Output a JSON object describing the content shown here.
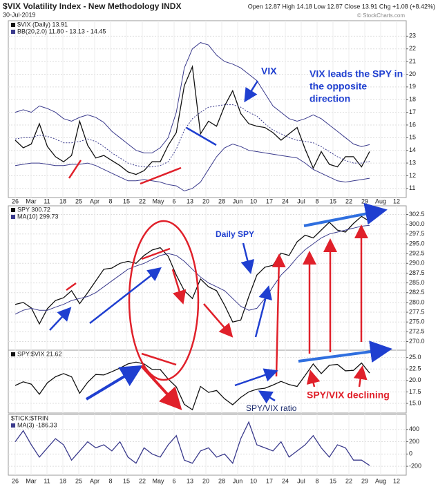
{
  "header": {
    "title": "$VIX Volatility Index - New Methodology INDX",
    "date": "30-Jul-2019",
    "quote": "Open 12.87 High 14.18 Low 12.87 Close 13.91 Chg +1.08 (+8.42%)",
    "credit": "© StockCharts.com"
  },
  "x_axis_labels": [
    "26",
    "Mar",
    "11",
    "18",
    "25",
    "Apr",
    "8",
    "15",
    "22",
    "May",
    "6",
    "13",
    "20",
    "28",
    "Jun",
    "10",
    "17",
    "24",
    "Jul",
    "8",
    "15",
    "22",
    "29",
    "Aug",
    "12"
  ],
  "annotations": {
    "vix": "VIX",
    "lead": [
      "VIX leads the SPY in",
      "the opposite",
      "direction"
    ],
    "daily_spy": "Daily SPY",
    "ratio": "SPY/VIX ratio",
    "declining": "SPY/VIX declining"
  },
  "chart_data": [
    {
      "type": "line",
      "ylim": [
        10.5,
        24
      ],
      "yticks": [
        11,
        12,
        13,
        14,
        15,
        16,
        17,
        18,
        19,
        20,
        21,
        22,
        23
      ],
      "grid": true,
      "series": [
        {
          "name": "$VIX (Daily) 13.91",
          "color": "#111111",
          "values": [
            14.8,
            14.2,
            14.5,
            16.1,
            14.3,
            13.5,
            13.1,
            13.6,
            16.3,
            14.4,
            13.4,
            13.6,
            13.2,
            12.8,
            12.3,
            12.1,
            12.4,
            13.1,
            13.1,
            14.4,
            15.4,
            19.1,
            20.6,
            15.3,
            16.3,
            15.9,
            17.5,
            18.7,
            16.9,
            16.1,
            15.9,
            15.8,
            15.4,
            14.8,
            15.3,
            15.8,
            14.1,
            12.6,
            13.9,
            12.9,
            12.7,
            13.5,
            13.5,
            12.7,
            13.91
          ]
        },
        {
          "name": "BB(20,2.0) 11.80 - 13.13 - 14.45",
          "color": "#3a3a8c",
          "upper": [
            17,
            17.2,
            17,
            17.5,
            17.3,
            17,
            16.5,
            16.3,
            16.6,
            16.8,
            16.6,
            16.2,
            15.5,
            15,
            14.5,
            14,
            13.8,
            13.8,
            14.2,
            15,
            17,
            20.5,
            22,
            22.5,
            22.3,
            21.5,
            21,
            20.8,
            20.5,
            20,
            19.5,
            18.5,
            17.5,
            17,
            16.5,
            16.3,
            16.5,
            16.8,
            16.5,
            16,
            15.5,
            15,
            14.5,
            14.3,
            14.45
          ],
          "middle": [
            14.9,
            15,
            15,
            15.2,
            15.1,
            14.9,
            14.6,
            14.6,
            14.7,
            14.9,
            14.7,
            14.3,
            13.8,
            13.4,
            13,
            12.8,
            12.7,
            12.7,
            12.8,
            13.1,
            14.1,
            15.6,
            16.5,
            17,
            17.4,
            17.5,
            17.6,
            17.6,
            17.4,
            17,
            16.7,
            16.1,
            15.6,
            15.3,
            15,
            14.8,
            14.7,
            14.6,
            14.3,
            13.9,
            13.5,
            13.2,
            13,
            13,
            13.13
          ],
          "lower": [
            12.8,
            12.9,
            13,
            13,
            12.9,
            12.8,
            12.8,
            12.9,
            12.9,
            13,
            12.8,
            12.5,
            12.2,
            11.9,
            11.6,
            11.6,
            11.7,
            11.6,
            11.5,
            11.3,
            11.2,
            10.8,
            11,
            11.5,
            12.5,
            13.5,
            14.2,
            14.5,
            14.3,
            14,
            13.9,
            13.8,
            13.7,
            13.6,
            13.5,
            13.4,
            13,
            12.5,
            12.2,
            11.9,
            11.6,
            11.5,
            11.6,
            11.7,
            11.8
          ]
        }
      ]
    },
    {
      "type": "line",
      "ylim": [
        268.5,
        304
      ],
      "grid": true,
      "yticks": [
        {
          "value": 270,
          "label": "270.0"
        },
        {
          "value": 272.5,
          "label": "272.5"
        },
        {
          "value": 275,
          "label": "275.0"
        },
        {
          "value": 277.5,
          "label": "277.5"
        },
        {
          "value": 280,
          "label": "280.0"
        },
        {
          "value": 282.5,
          "label": "282.5"
        },
        {
          "value": 285,
          "label": "285.0"
        },
        {
          "value": 287.5,
          "label": "287.5"
        },
        {
          "value": 290,
          "label": "290.0"
        },
        {
          "value": 292.5,
          "label": "292.5"
        },
        {
          "value": 295,
          "label": "295.0"
        },
        {
          "value": 297.5,
          "label": "297.5"
        },
        {
          "value": 300,
          "label": "300.0"
        },
        {
          "value": 302.5,
          "label": "302.5"
        }
      ],
      "series": [
        {
          "name": "SPY 300.72",
          "color": "#111111",
          "values": [
            279.5,
            280,
            278.6,
            274.5,
            278.4,
            280.5,
            281.2,
            283,
            279.7,
            282.5,
            285.5,
            288.5,
            288.8,
            290,
            290.5,
            290,
            292,
            293.4,
            294,
            291.8,
            287,
            283,
            281,
            286,
            284,
            283,
            279.3,
            275,
            275.5,
            281.5,
            287,
            289,
            289.5,
            292.6,
            292,
            295.5,
            297.2,
            296.5,
            298.5,
            300.5,
            298.5,
            298,
            300.2,
            302,
            300.72
          ]
        },
        {
          "name": "MA(10) 299.73",
          "color": "#3a3a8c",
          "values": [
            277,
            278,
            278.5,
            278,
            278,
            278.8,
            279.5,
            280.5,
            281,
            281.5,
            282.5,
            284,
            285.5,
            287,
            288.5,
            289.3,
            290,
            291,
            292,
            292.5,
            292,
            290.5,
            288.5,
            286.5,
            285,
            284,
            283,
            281,
            279,
            278,
            278.5,
            281,
            284,
            287,
            289,
            291.5,
            293.5,
            295,
            296.5,
            297.5,
            298,
            298.5,
            299,
            299.5,
            299.73
          ]
        }
      ]
    },
    {
      "type": "line",
      "ylim": [
        13.5,
        26
      ],
      "grid": true,
      "yticks": [
        {
          "value": 15,
          "label": "15.0"
        },
        {
          "value": 17.5,
          "label": "17.5"
        },
        {
          "value": 20,
          "label": "20.0"
        },
        {
          "value": 22.5,
          "label": "22.5"
        },
        {
          "value": 25,
          "label": "25.0"
        }
      ],
      "series": [
        {
          "name": "SPY:$VIX 21.62",
          "color": "#111111",
          "values": [
            18.9,
            19.7,
            19.2,
            17,
            19.5,
            20.8,
            21.5,
            20.8,
            17.2,
            19.6,
            21.3,
            21.2,
            21.9,
            22.7,
            23.6,
            24,
            23.6,
            22.4,
            22.4,
            20.3,
            18.6,
            14.8,
            13.6,
            18.7,
            17.4,
            17.8,
            16,
            14.7,
            16.3,
            17.5,
            18.1,
            18.3,
            19,
            19.8,
            19.1,
            18.7,
            21.1,
            23.6,
            21.5,
            23.3,
            23.5,
            22.1,
            22.2,
            23.8,
            21.62
          ]
        }
      ]
    },
    {
      "type": "line",
      "title": "$TICK:$TRIN",
      "ylim": [
        -300,
        600
      ],
      "yticks": [
        -200,
        0,
        200,
        400
      ],
      "grid": true,
      "series": [
        {
          "name": "MA(3) -186.33",
          "color": "#3a3a8c",
          "values": [
            200,
            380,
            150,
            -50,
            100,
            250,
            150,
            -100,
            50,
            200,
            100,
            150,
            50,
            200,
            -50,
            -150,
            100,
            0,
            -50,
            150,
            300,
            -100,
            -150,
            50,
            100,
            -50,
            0,
            -150,
            250,
            520,
            150,
            100,
            50,
            200,
            -50,
            50,
            150,
            300,
            100,
            -50,
            150,
            100,
            -100,
            -100,
            -186.33
          ]
        }
      ]
    }
  ]
}
